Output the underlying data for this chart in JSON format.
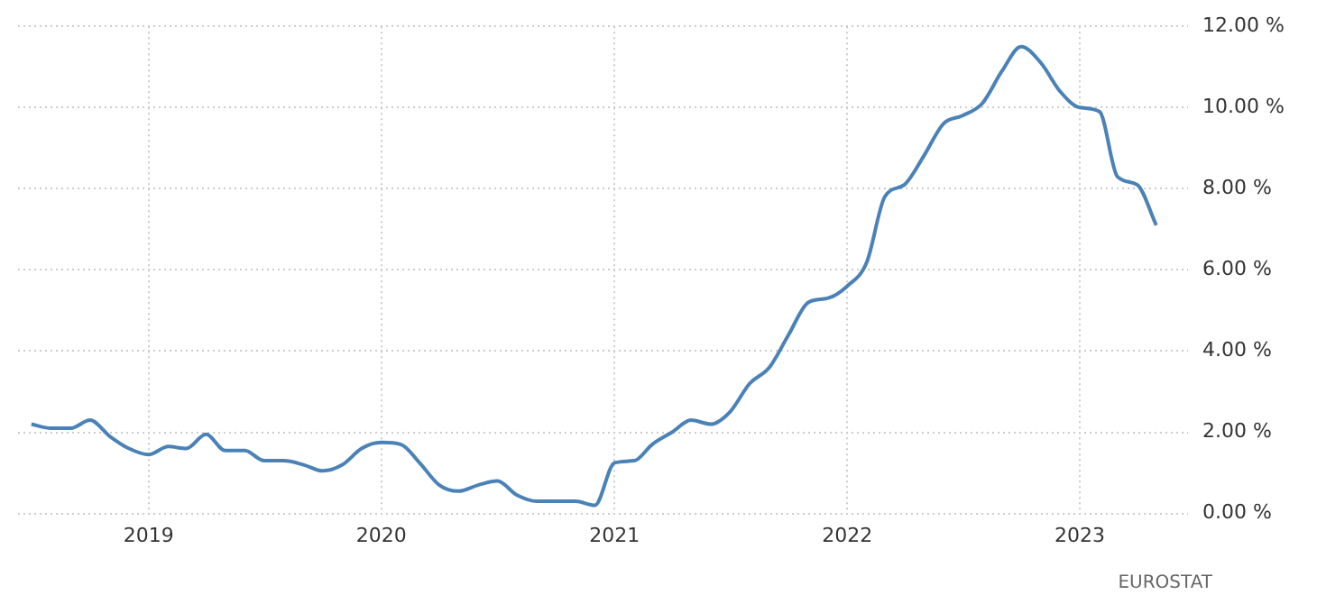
{
  "chart_data": {
    "type": "line",
    "x": [
      "2018-07",
      "2018-08",
      "2018-09",
      "2018-10",
      "2018-11",
      "2018-12",
      "2019-01",
      "2019-02",
      "2019-03",
      "2019-04",
      "2019-05",
      "2019-06",
      "2019-07",
      "2019-08",
      "2019-09",
      "2019-10",
      "2019-11",
      "2019-12",
      "2020-01",
      "2020-02",
      "2020-03",
      "2020-04",
      "2020-05",
      "2020-06",
      "2020-07",
      "2020-08",
      "2020-09",
      "2020-10",
      "2020-11",
      "2020-12",
      "2021-01",
      "2021-02",
      "2021-03",
      "2021-04",
      "2021-05",
      "2021-06",
      "2021-07",
      "2021-08",
      "2021-09",
      "2021-10",
      "2021-11",
      "2021-12",
      "2022-01",
      "2022-02",
      "2022-03",
      "2022-04",
      "2022-05",
      "2022-06",
      "2022-07",
      "2022-08",
      "2022-09",
      "2022-10",
      "2022-11",
      "2022-12",
      "2023-01",
      "2023-02",
      "2023-03",
      "2023-04",
      "2023-05"
    ],
    "series": [
      {
        "color": "#4a82b8",
        "values": [
          2.2,
          2.1,
          2.1,
          2.3,
          1.9,
          1.6,
          1.45,
          1.65,
          1.6,
          1.95,
          1.55,
          1.55,
          1.3,
          1.3,
          1.2,
          1.05,
          1.2,
          1.6,
          1.75,
          1.7,
          1.25,
          0.7,
          0.55,
          0.7,
          0.8,
          0.45,
          0.3,
          0.3,
          0.3,
          0.2,
          1.25,
          1.3,
          1.7,
          2.0,
          2.3,
          2.2,
          2.5,
          3.2,
          3.6,
          4.4,
          5.2,
          5.3,
          5.6,
          6.2,
          7.8,
          8.1,
          8.8,
          9.6,
          9.8,
          10.1,
          10.9,
          11.5,
          11.1,
          10.4,
          10.0,
          9.9,
          8.3,
          8.1,
          7.1
        ]
      }
    ],
    "xlim": [
      "2018-06-10",
      "2023-06-20"
    ],
    "xticks": [
      "2019",
      "2020",
      "2021",
      "2022",
      "2023"
    ],
    "ylim": [
      0,
      12
    ],
    "yticks": [
      {
        "value": 0,
        "label": "0.00 %"
      },
      {
        "value": 2,
        "label": "2.00 %"
      },
      {
        "value": 4,
        "label": "4.00 %"
      },
      {
        "value": 6,
        "label": "6.00 %"
      },
      {
        "value": 8,
        "label": "8.00 %"
      },
      {
        "value": 10,
        "label": "10.00 %"
      },
      {
        "value": 12,
        "label": "12.00 %"
      }
    ],
    "grid": true,
    "legend": false,
    "marker": "none",
    "line_style": "solid",
    "annotations": [
      "EUROSTAT"
    ]
  }
}
